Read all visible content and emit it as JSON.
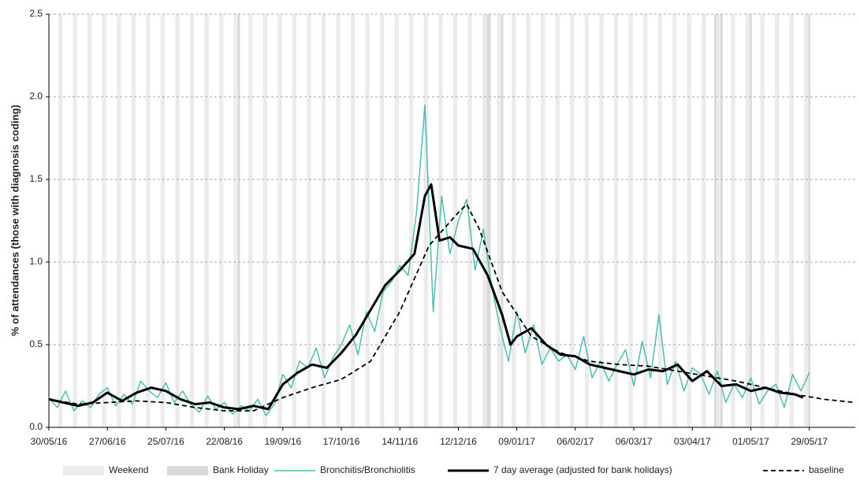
{
  "chart_data": {
    "type": "line",
    "y_label": "% of attendances (those with diagnosis coding)",
    "xlim": [
      "30/05/16",
      "20/06/17"
    ],
    "xticks": [
      "30/05/16",
      "27/06/16",
      "25/07/16",
      "22/08/16",
      "19/09/16",
      "17/10/16",
      "14/11/16",
      "12/12/16",
      "09/01/17",
      "06/02/17",
      "06/03/17",
      "03/04/17",
      "01/05/17",
      "29/05/17"
    ],
    "ylim": [
      0,
      2.5
    ],
    "yticks": [
      {
        "value": 0,
        "label": "0.0"
      },
      {
        "value": 0.5,
        "label": "0.5"
      },
      {
        "value": 1,
        "label": "1.0"
      },
      {
        "value": 1.5,
        "label": "1.5"
      },
      {
        "value": 2,
        "label": "2.0"
      },
      {
        "value": 2.5,
        "label": "2.5"
      }
    ],
    "grid": true,
    "legend": "bottom",
    "shading": [
      {
        "name": "Weekend",
        "color": "#ebebeb"
      },
      {
        "name": "Bank Holiday",
        "color": "#d9d9d9",
        "dates": [
          "29/08/16",
          "26/12/16",
          "27/12/16",
          "02/01/17",
          "14/04/17",
          "17/04/17",
          "01/05/17",
          "29/05/17"
        ]
      }
    ],
    "series": [
      {
        "name": "Bronchitis/Bronchiolitis",
        "color": "#4dbdb2",
        "width": 1.5,
        "dash": false,
        "x": [
          "30/05/16",
          "03/06/16",
          "07/06/16",
          "11/06/16",
          "15/06/16",
          "19/06/16",
          "23/06/16",
          "27/06/16",
          "01/07/16",
          "05/07/16",
          "09/07/16",
          "13/07/16",
          "17/07/16",
          "21/07/16",
          "25/07/16",
          "29/07/16",
          "02/08/16",
          "06/08/16",
          "10/08/16",
          "14/08/16",
          "18/08/16",
          "22/08/16",
          "26/08/16",
          "30/08/16",
          "03/09/16",
          "07/09/16",
          "11/09/16",
          "15/09/16",
          "19/09/16",
          "23/09/16",
          "27/09/16",
          "01/10/16",
          "05/10/16",
          "09/10/16",
          "13/10/16",
          "17/10/16",
          "21/10/16",
          "25/10/16",
          "29/10/16",
          "02/11/16",
          "06/11/16",
          "10/11/16",
          "14/11/16",
          "18/11/16",
          "22/11/16",
          "26/11/16",
          "30/11/16",
          "04/12/16",
          "08/12/16",
          "12/12/16",
          "16/12/16",
          "20/12/16",
          "24/12/16",
          "28/12/16",
          "01/01/17",
          "05/01/17",
          "09/01/17",
          "13/01/17",
          "17/01/17",
          "21/01/17",
          "25/01/17",
          "29/01/17",
          "02/02/17",
          "06/02/17",
          "10/02/17",
          "14/02/17",
          "18/02/17",
          "22/02/17",
          "26/02/17",
          "02/03/17",
          "06/03/17",
          "10/03/17",
          "14/03/17",
          "18/03/17",
          "22/03/17",
          "26/03/17",
          "30/03/17",
          "03/04/17",
          "07/04/17",
          "11/04/17",
          "15/04/17",
          "19/04/17",
          "23/04/17",
          "27/04/17",
          "01/05/17",
          "05/05/17",
          "09/05/17",
          "13/05/17",
          "17/05/17",
          "21/05/17",
          "25/05/17",
          "29/05/17"
        ],
        "values": [
          0.18,
          0.12,
          0.22,
          0.1,
          0.16,
          0.12,
          0.2,
          0.24,
          0.13,
          0.2,
          0.14,
          0.28,
          0.22,
          0.18,
          0.27,
          0.15,
          0.22,
          0.14,
          0.09,
          0.19,
          0.11,
          0.15,
          0.08,
          0.13,
          0.1,
          0.17,
          0.07,
          0.14,
          0.32,
          0.24,
          0.4,
          0.36,
          0.48,
          0.3,
          0.42,
          0.5,
          0.62,
          0.44,
          0.7,
          0.58,
          0.82,
          0.88,
          0.98,
          0.92,
          1.3,
          1.95,
          0.7,
          1.4,
          1.05,
          1.25,
          1.38,
          0.95,
          1.2,
          0.85,
          0.6,
          0.4,
          0.7,
          0.45,
          0.62,
          0.38,
          0.48,
          0.4,
          0.44,
          0.35,
          0.55,
          0.3,
          0.4,
          0.28,
          0.38,
          0.47,
          0.25,
          0.52,
          0.3,
          0.68,
          0.26,
          0.4,
          0.22,
          0.36,
          0.32,
          0.2,
          0.34,
          0.15,
          0.26,
          0.18,
          0.3,
          0.14,
          0.22,
          0.26,
          0.12,
          0.32,
          0.22,
          0.33
        ]
      },
      {
        "name": "7 day average (adjusted for bank holidays)",
        "color": "#000000",
        "width": 3,
        "dash": false,
        "x": [
          "30/05/16",
          "06/06/16",
          "13/06/16",
          "20/06/16",
          "27/06/16",
          "04/07/16",
          "11/07/16",
          "18/07/16",
          "25/07/16",
          "01/08/16",
          "08/08/16",
          "15/08/16",
          "22/08/16",
          "29/08/16",
          "05/09/16",
          "12/09/16",
          "19/09/16",
          "26/09/16",
          "03/10/16",
          "10/10/16",
          "17/10/16",
          "24/10/16",
          "31/10/16",
          "07/11/16",
          "14/11/16",
          "21/11/16",
          "26/11/16",
          "29/11/16",
          "03/12/16",
          "08/12/16",
          "12/12/16",
          "19/12/16",
          "26/12/16",
          "02/01/17",
          "06/01/17",
          "09/01/17",
          "16/01/17",
          "23/01/17",
          "30/01/17",
          "06/02/17",
          "13/02/17",
          "20/02/17",
          "27/02/17",
          "06/03/17",
          "13/03/17",
          "20/03/17",
          "27/03/17",
          "03/04/17",
          "10/04/17",
          "17/04/17",
          "24/04/17",
          "01/05/17",
          "08/05/17",
          "15/05/17",
          "22/05/17",
          "26/05/17"
        ],
        "values": [
          0.17,
          0.15,
          0.13,
          0.15,
          0.21,
          0.16,
          0.21,
          0.24,
          0.22,
          0.17,
          0.14,
          0.15,
          0.12,
          0.11,
          0.13,
          0.11,
          0.26,
          0.33,
          0.38,
          0.36,
          0.45,
          0.56,
          0.71,
          0.86,
          0.95,
          1.05,
          1.4,
          1.47,
          1.13,
          1.15,
          1.1,
          1.08,
          0.92,
          0.68,
          0.5,
          0.55,
          0.6,
          0.5,
          0.44,
          0.43,
          0.38,
          0.36,
          0.34,
          0.32,
          0.35,
          0.34,
          0.38,
          0.28,
          0.34,
          0.25,
          0.26,
          0.22,
          0.24,
          0.21,
          0.2,
          0.18
        ]
      },
      {
        "name": "baseline",
        "color": "#000000",
        "width": 1.8,
        "dash": true,
        "x": [
          "30/05/16",
          "13/06/16",
          "27/06/16",
          "11/07/16",
          "25/07/16",
          "08/08/16",
          "22/08/16",
          "05/09/16",
          "19/09/16",
          "03/10/16",
          "17/10/16",
          "31/10/16",
          "14/11/16",
          "28/11/16",
          "12/12/16",
          "16/12/16",
          "22/12/16",
          "02/01/17",
          "16/01/17",
          "30/01/17",
          "13/02/17",
          "27/02/17",
          "13/03/17",
          "27/03/17",
          "10/04/17",
          "24/04/17",
          "08/05/17",
          "22/05/17",
          "05/06/17",
          "20/06/17"
        ],
        "values": [
          0.17,
          0.14,
          0.15,
          0.16,
          0.15,
          0.12,
          0.1,
          0.1,
          0.18,
          0.24,
          0.29,
          0.4,
          0.7,
          1.1,
          1.3,
          1.35,
          1.2,
          0.82,
          0.55,
          0.45,
          0.4,
          0.38,
          0.37,
          0.34,
          0.31,
          0.28,
          0.24,
          0.2,
          0.17,
          0.15
        ]
      }
    ]
  }
}
